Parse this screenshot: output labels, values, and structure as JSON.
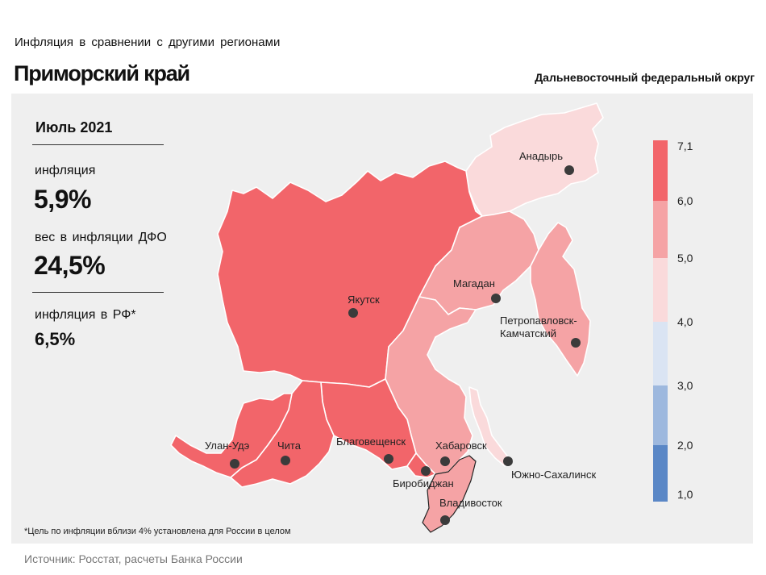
{
  "header": {
    "subtitle": "Инфляция  в сравнении  с другими  регионами",
    "title": "Приморский край",
    "district": "Дальневосточный федеральный округ"
  },
  "stats": {
    "period": "Июль 2021",
    "inflation_label": "инфляция",
    "inflation_value": "5,9%",
    "weight_label": "вес в инфляции  ДФО",
    "weight_value": "24,5%",
    "rf_label": "инфляция  в РФ*",
    "rf_value": "6,5%"
  },
  "footnote": "*Цель по инфляции вблизи 4% установлена для России в целом",
  "source": "Источник: Росстат, расчеты Банка России",
  "cities": [
    {
      "name": "Анадырь"
    },
    {
      "name": "Магадан"
    },
    {
      "name": "Якутск"
    },
    {
      "name": "Петропавловск-",
      "name2": "Камчатский"
    },
    {
      "name": "Улан-Удэ"
    },
    {
      "name": "Чита"
    },
    {
      "name": "Благовещенск"
    },
    {
      "name": "Хабаровск"
    },
    {
      "name": "Биробиджан"
    },
    {
      "name": "Южно-Сахалинск"
    },
    {
      "name": "Владивосток"
    }
  ],
  "legend": {
    "ticks": [
      "7,1",
      "6,0",
      "5,0",
      "4,0",
      "3,0",
      "2,0",
      "1,0"
    ],
    "bins": [
      {
        "range": "6,0–7,1",
        "color": "#f2656a"
      },
      {
        "range": "5,0–6,0",
        "color": "#f5a3a5"
      },
      {
        "range": "4,0–5,0",
        "color": "#fadadb"
      },
      {
        "range": "3,0–4,0",
        "color": "#dae4f3"
      },
      {
        "range": "2,0–3,0",
        "color": "#9db8de"
      },
      {
        "range": "1,0–2,0",
        "color": "#5a87c6"
      }
    ]
  },
  "colors": {
    "high": "#f2656a",
    "mid": "#f5a3a5",
    "low": "#fadadb",
    "panel": "#efefef"
  }
}
